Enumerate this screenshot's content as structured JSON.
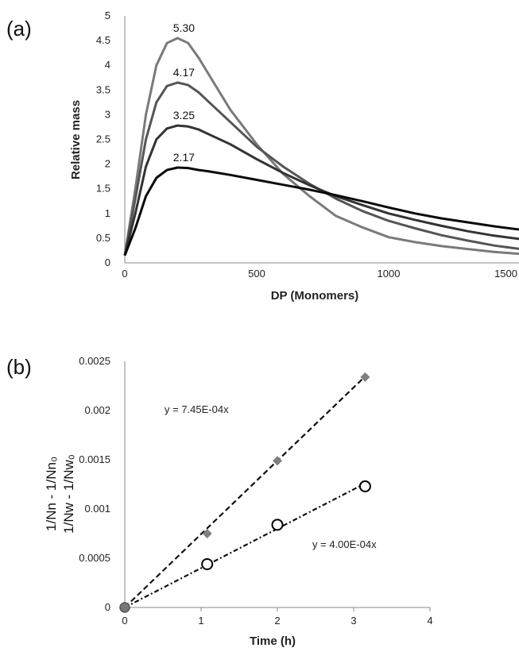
{
  "chart_data": [
    {
      "panel_label": "(a)",
      "type": "line",
      "xlabel": "DP (Monomers)",
      "ylabel": "Relative mass",
      "xlim": [
        0,
        1500
      ],
      "ylim": [
        0,
        5
      ],
      "x_ticks": [
        "0",
        "500",
        "1000",
        "1500"
      ],
      "y_ticks": [
        "0",
        "0.5",
        "1",
        "1.5",
        "2",
        "2.5",
        "3",
        "3.5",
        "4",
        "4.5",
        "5"
      ],
      "grid": false,
      "series": [
        {
          "name": "5.30",
          "color": "#7a7a7a",
          "x": [
            0,
            40,
            80,
            120,
            160,
            200,
            240,
            280,
            320,
            400,
            500,
            600,
            700,
            800,
            900,
            1000,
            1100,
            1200,
            1300,
            1400,
            1500
          ],
          "y": [
            0.15,
            1.5,
            3.0,
            4.0,
            4.45,
            4.55,
            4.45,
            4.15,
            3.8,
            3.1,
            2.4,
            1.8,
            1.35,
            0.95,
            0.72,
            0.52,
            0.42,
            0.34,
            0.28,
            0.22,
            0.18
          ]
        },
        {
          "name": "4.17",
          "color": "#555555",
          "x": [
            0,
            40,
            80,
            120,
            160,
            200,
            240,
            280,
            320,
            400,
            500,
            600,
            700,
            800,
            900,
            1000,
            1100,
            1200,
            1300,
            1400,
            1500
          ],
          "y": [
            0.15,
            1.3,
            2.5,
            3.25,
            3.58,
            3.65,
            3.6,
            3.45,
            3.25,
            2.85,
            2.35,
            1.95,
            1.6,
            1.3,
            1.05,
            0.85,
            0.7,
            0.56,
            0.45,
            0.35,
            0.28
          ]
        },
        {
          "name": "3.25",
          "color": "#333333",
          "x": [
            0,
            40,
            80,
            120,
            160,
            200,
            240,
            280,
            320,
            400,
            500,
            600,
            700,
            800,
            900,
            1000,
            1100,
            1200,
            1300,
            1400,
            1500
          ],
          "y": [
            0.15,
            1.0,
            1.95,
            2.5,
            2.72,
            2.78,
            2.76,
            2.7,
            2.6,
            2.4,
            2.1,
            1.82,
            1.57,
            1.35,
            1.17,
            1.0,
            0.87,
            0.75,
            0.64,
            0.55,
            0.48
          ]
        },
        {
          "name": "2.17",
          "color": "#0a0a0a",
          "x": [
            0,
            40,
            80,
            120,
            160,
            200,
            240,
            280,
            320,
            400,
            500,
            600,
            700,
            800,
            900,
            1000,
            1100,
            1200,
            1300,
            1400,
            1500
          ],
          "y": [
            0.15,
            0.7,
            1.35,
            1.72,
            1.88,
            1.93,
            1.92,
            1.88,
            1.85,
            1.78,
            1.68,
            1.58,
            1.48,
            1.37,
            1.25,
            1.12,
            1.0,
            0.9,
            0.82,
            0.74,
            0.67
          ]
        }
      ]
    },
    {
      "panel_label": "(b)",
      "type": "scatter",
      "xlabel": "Time (h)",
      "ylabel_lines": [
        "1/Nn - 1/Nn₀",
        "1/Nw - 1/Nw₀"
      ],
      "xlim": [
        0,
        4
      ],
      "ylim": [
        0,
        0.0025
      ],
      "x_ticks": [
        "0",
        "1",
        "2",
        "3",
        "4"
      ],
      "y_ticks": [
        "0",
        "0.0005",
        "0.001",
        "0.0015",
        "0.002",
        "0.0025"
      ],
      "grid": false,
      "series": [
        {
          "name": "",
          "marker": "filled-diamond",
          "color": "#7f7f7f",
          "x": [
            0,
            1.08,
            2.0,
            3.15
          ],
          "y": [
            0,
            0.00075,
            0.00149,
            0.00234
          ],
          "trendline": {
            "equation": "y = 7.45E-04x",
            "slope": 0.000745
          }
        },
        {
          "name": "",
          "marker": "open-circle",
          "color": "#000000",
          "x": [
            0,
            1.08,
            2.0,
            3.15
          ],
          "y": [
            0,
            0.00044,
            0.00084,
            0.00123
          ],
          "trendline": {
            "equation": "y = 4.00E-04x",
            "slope": 0.0004
          }
        }
      ]
    }
  ]
}
